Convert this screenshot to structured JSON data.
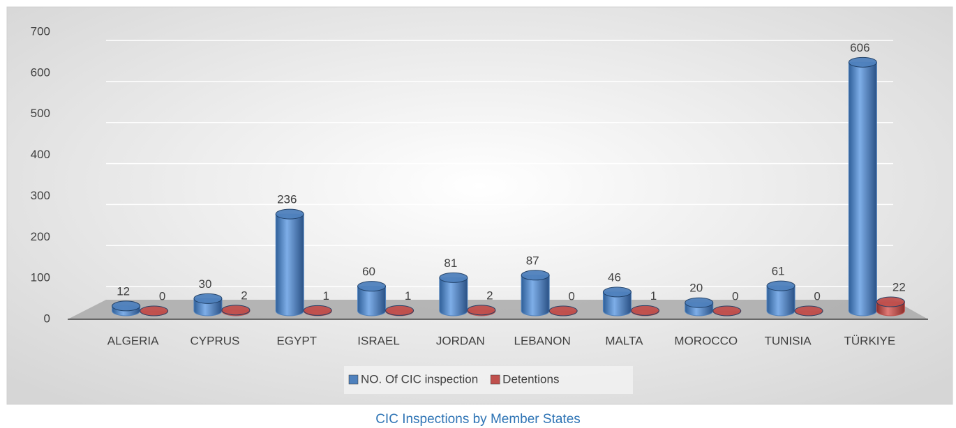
{
  "chart_data": {
    "type": "bar3d",
    "title": "CIC Inspections by Member States",
    "categories": [
      "ALGERIA",
      "CYPRUS",
      "EGYPT",
      "ISRAEL",
      "JORDAN",
      "LEBANON",
      "MALTA",
      "MOROCCO",
      "TUNISIA",
      "TÜRKIYE"
    ],
    "series": [
      {
        "name": "NO. Of CIC inspection",
        "color": "#4f81bd",
        "values": [
          12,
          30,
          236,
          60,
          81,
          87,
          46,
          20,
          61,
          606
        ]
      },
      {
        "name": "Detentions",
        "color": "#c0504d",
        "values": [
          0,
          2,
          1,
          1,
          2,
          0,
          1,
          0,
          0,
          22
        ]
      }
    ],
    "ylim": [
      0,
      700
    ],
    "yticks": [
      0,
      100,
      200,
      300,
      400,
      500,
      600,
      700
    ],
    "grid": true,
    "legend": "bottom"
  }
}
